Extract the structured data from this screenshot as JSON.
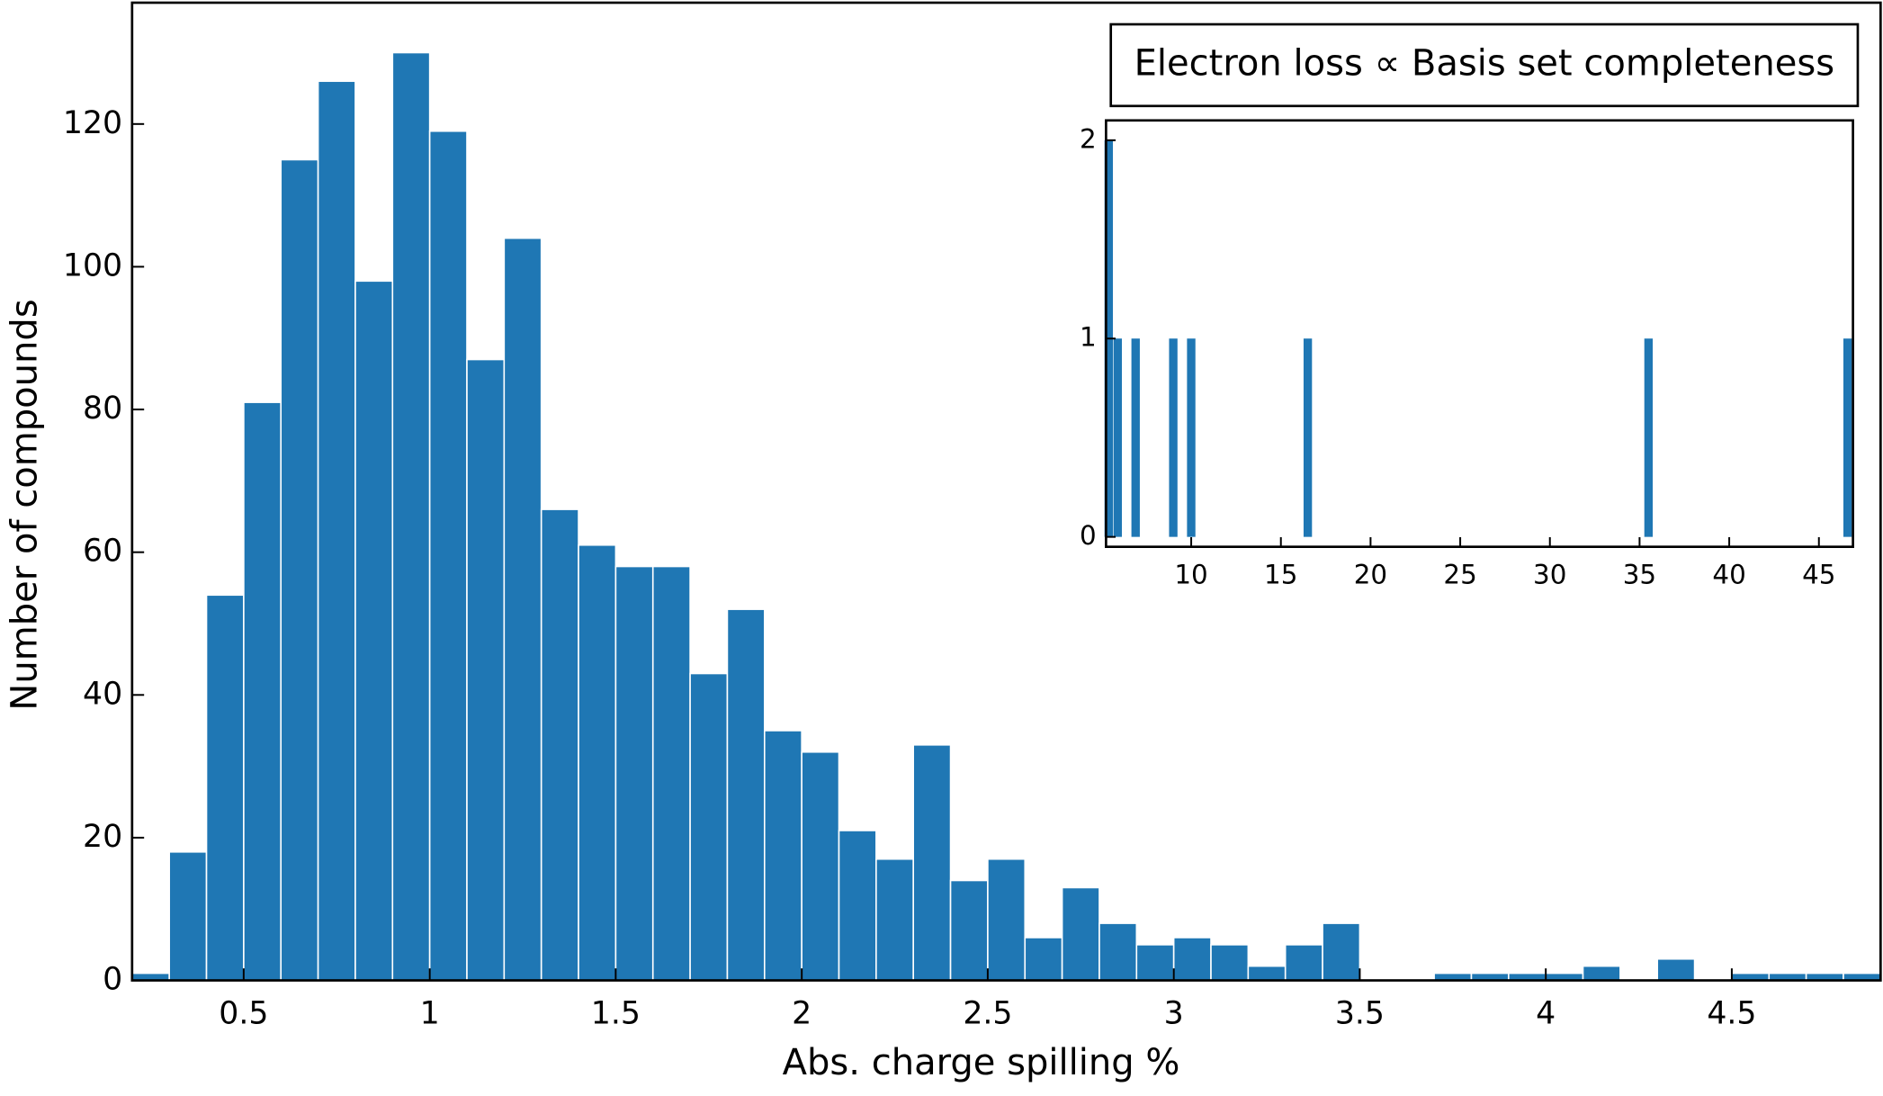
{
  "chart_data": [
    {
      "type": "histogram",
      "xlabel": "Abs. charge spilling %",
      "ylabel": "Number of compounds",
      "color": "#1f77b4",
      "bins": [
        0.2,
        0.3,
        0.4,
        0.5,
        0.6,
        0.7,
        0.8,
        0.9,
        1.0,
        1.1,
        1.2,
        1.3,
        1.4,
        1.5,
        1.6,
        1.7,
        1.8,
        1.9,
        2.0,
        2.1,
        2.2,
        2.3,
        2.4,
        2.5,
        2.6,
        2.7,
        2.8,
        2.9,
        3.0,
        3.1,
        3.2,
        3.3,
        3.4,
        3.5,
        3.6,
        3.7,
        3.8,
        3.9,
        4.0,
        4.1,
        4.2,
        4.3,
        4.4,
        4.5,
        4.6,
        4.7,
        4.8,
        4.9
      ],
      "values": [
        1,
        18,
        54,
        81,
        115,
        126,
        98,
        130,
        119,
        87,
        104,
        66,
        61,
        58,
        58,
        43,
        52,
        35,
        32,
        21,
        17,
        33,
        14,
        17,
        6,
        13,
        8,
        5,
        6,
        5,
        2,
        5,
        8,
        0,
        0,
        1,
        1,
        1,
        1,
        2,
        0,
        3,
        0,
        1,
        1,
        1,
        1
      ],
      "xlim": [
        0.2,
        4.9
      ],
      "xticks": [
        0.5,
        1,
        1.5,
        2,
        2.5,
        3,
        3.5,
        4,
        4.5
      ],
      "ylim": [
        0,
        137
      ],
      "yticks": [
        0,
        20,
        40,
        60,
        80,
        100,
        120
      ]
    },
    {
      "type": "bar",
      "title": "Electron loss ∝ Basis set completeness",
      "color": "#1f77b4",
      "x": [
        5.4,
        5.9,
        6.9,
        9.0,
        10.0,
        16.5,
        35.5,
        46.6
      ],
      "values": [
        2,
        1,
        1,
        1,
        1,
        1,
        1,
        1
      ],
      "xlim": [
        5.25,
        46.9
      ],
      "xticks": [
        10,
        15,
        20,
        25,
        30,
        35,
        40,
        45
      ],
      "ylim": [
        -0.05,
        2.1
      ],
      "yticks": [
        0,
        1,
        2
      ]
    }
  ]
}
